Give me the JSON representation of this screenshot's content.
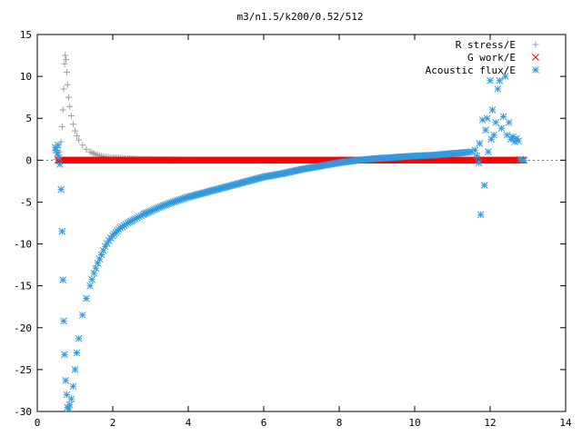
{
  "chart_data": {
    "type": "scatter",
    "title": "m3/n1.5/k200/0.52/512",
    "xlabel": "",
    "ylabel": "",
    "xlim": [
      0,
      14
    ],
    "ylim": [
      -30,
      15
    ],
    "x_ticks": [
      "0",
      "2",
      "4",
      "6",
      "8",
      "10",
      "12",
      "14"
    ],
    "y_ticks": [
      "15",
      "10",
      "5",
      "0",
      "-5",
      "-10",
      "-15",
      "-20",
      "-25",
      "-30"
    ],
    "grid": false,
    "legend_position": "top-right",
    "series": [
      {
        "name": "R stress/E",
        "marker": "plus",
        "color": "#a0a0a0",
        "points": [
          [
            0.5,
            0.1
          ],
          [
            0.55,
            0.3
          ],
          [
            0.6,
            1.0
          ],
          [
            0.63,
            2.2
          ],
          [
            0.66,
            4.0
          ],
          [
            0.68,
            6.0
          ],
          [
            0.7,
            8.5
          ],
          [
            0.72,
            11.5
          ],
          [
            0.74,
            12.5
          ],
          [
            0.76,
            12.0
          ],
          [
            0.78,
            10.5
          ],
          [
            0.8,
            9.0
          ],
          [
            0.83,
            7.5
          ],
          [
            0.86,
            6.4
          ],
          [
            0.9,
            5.3
          ],
          [
            0.95,
            4.3
          ],
          [
            1.0,
            3.5
          ],
          [
            1.05,
            2.9
          ],
          [
            1.1,
            2.4
          ],
          [
            1.2,
            1.8
          ],
          [
            1.3,
            1.3
          ],
          [
            1.4,
            1.0
          ],
          [
            1.5,
            0.8
          ],
          [
            1.6,
            0.6
          ],
          [
            1.7,
            0.5
          ],
          [
            1.8,
            0.4
          ],
          [
            1.9,
            0.35
          ],
          [
            2.0,
            0.3
          ],
          [
            2.2,
            0.25
          ],
          [
            2.4,
            0.2
          ],
          [
            2.6,
            0.15
          ],
          [
            2.8,
            0.12
          ],
          [
            3.0,
            0.1
          ],
          [
            3.5,
            0.06
          ],
          [
            4.0,
            0.04
          ],
          [
            5.0,
            0.02
          ],
          [
            6.0,
            0.01
          ],
          [
            8.0,
            0.0
          ],
          [
            10.0,
            0.0
          ],
          [
            12.0,
            0.0
          ]
        ]
      },
      {
        "name": "G work/E",
        "marker": "cross",
        "color": "#ff0000",
        "x_range": [
          0.55,
          12.9
        ],
        "constant_y": 0
      },
      {
        "name": "Acoustic flux/E",
        "marker": "star",
        "color": "#3399dd",
        "points": [
          [
            0.48,
            1.5
          ],
          [
            0.5,
            1.2
          ],
          [
            0.53,
            0.8
          ],
          [
            0.55,
            1.8
          ],
          [
            0.57,
            0.3
          ],
          [
            0.6,
            -0.5
          ],
          [
            0.63,
            -3.5
          ],
          [
            0.66,
            -8.5
          ],
          [
            0.68,
            -14.3
          ],
          [
            0.7,
            -19.2
          ],
          [
            0.72,
            -23.2
          ],
          [
            0.75,
            -26.3
          ],
          [
            0.78,
            -28.0
          ],
          [
            0.8,
            -29.5
          ],
          [
            0.83,
            -29.7
          ],
          [
            0.86,
            -29.2
          ],
          [
            0.9,
            -28.5
          ],
          [
            0.95,
            -27.0
          ],
          [
            1.0,
            -25.0
          ],
          [
            1.05,
            -23.0
          ],
          [
            1.1,
            -21.3
          ],
          [
            1.2,
            -18.5
          ],
          [
            1.3,
            -16.5
          ],
          [
            1.4,
            -15.0
          ],
          [
            1.5,
            -13.5
          ],
          [
            1.6,
            -12.3
          ],
          [
            1.7,
            -11.3
          ],
          [
            1.8,
            -10.3
          ],
          [
            1.9,
            -9.6
          ],
          [
            2.0,
            -9.0
          ],
          [
            2.2,
            -8.1
          ],
          [
            2.4,
            -7.5
          ],
          [
            2.6,
            -7.0
          ],
          [
            2.8,
            -6.5
          ],
          [
            3.0,
            -6.1
          ],
          [
            3.3,
            -5.5
          ],
          [
            3.6,
            -5.0
          ],
          [
            4.0,
            -4.4
          ],
          [
            4.5,
            -3.8
          ],
          [
            5.0,
            -3.2
          ],
          [
            5.5,
            -2.6
          ],
          [
            6.0,
            -2.0
          ],
          [
            6.5,
            -1.6
          ],
          [
            7.0,
            -1.1
          ],
          [
            7.5,
            -0.7
          ],
          [
            8.0,
            -0.3
          ],
          [
            8.5,
            0.0
          ],
          [
            9.0,
            0.2
          ],
          [
            9.5,
            0.35
          ],
          [
            10.0,
            0.5
          ],
          [
            10.5,
            0.6
          ],
          [
            11.0,
            0.8
          ],
          [
            11.3,
            0.9
          ],
          [
            11.5,
            1.0
          ],
          [
            11.6,
            1.2
          ],
          [
            11.65,
            0.5
          ],
          [
            11.7,
            -0.3
          ],
          [
            11.72,
            2.0
          ],
          [
            11.75,
            -6.5
          ],
          [
            11.8,
            4.8
          ],
          [
            11.85,
            -3.0
          ],
          [
            11.88,
            3.6
          ],
          [
            11.92,
            5.0
          ],
          [
            11.95,
            1.0
          ],
          [
            12.0,
            9.5
          ],
          [
            12.03,
            2.5
          ],
          [
            12.06,
            6.0
          ],
          [
            12.1,
            3.0
          ],
          [
            12.15,
            4.5
          ],
          [
            12.2,
            8.5
          ],
          [
            12.25,
            9.5
          ],
          [
            12.3,
            3.8
          ],
          [
            12.35,
            5.2
          ],
          [
            12.4,
            10.0
          ],
          [
            12.45,
            3.0
          ],
          [
            12.5,
            4.5
          ],
          [
            12.55,
            2.5
          ],
          [
            12.6,
            2.8
          ],
          [
            12.65,
            2.2
          ],
          [
            12.7,
            2.6
          ],
          [
            12.75,
            2.3
          ],
          [
            12.8,
            0.1
          ],
          [
            12.85,
            0.0
          ],
          [
            12.9,
            0.0
          ]
        ]
      }
    ]
  }
}
